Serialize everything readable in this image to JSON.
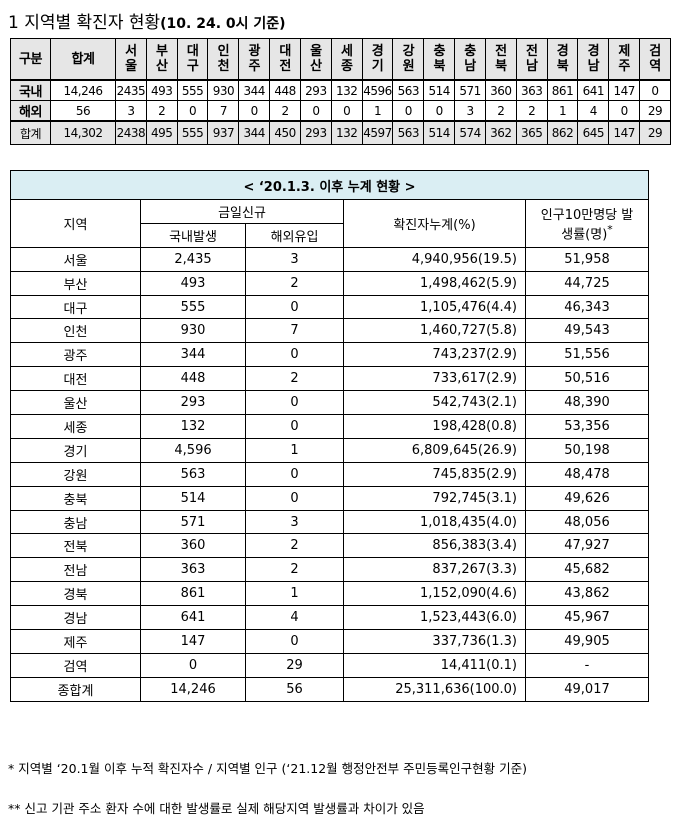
{
  "header": {
    "title": "1  지역별 확진자 현황",
    "date": "(10. 24. 0시 기준)"
  },
  "summary": {
    "columns": [
      "구분",
      "합계",
      "서울",
      "부산",
      "대구",
      "인천",
      "광주",
      "대전",
      "울산",
      "세종",
      "경기",
      "강원",
      "충북",
      "충남",
      "전북",
      "전남",
      "경북",
      "경남",
      "제주",
      "검역"
    ],
    "rows": [
      [
        "국내",
        "14,246",
        "2435",
        "493",
        "555",
        "930",
        "344",
        "448",
        "293",
        "132",
        "4596",
        "563",
        "514",
        "571",
        "360",
        "363",
        "861",
        "641",
        "147",
        "0"
      ],
      [
        "해외",
        "56",
        "3",
        "2",
        "0",
        "7",
        "0",
        "2",
        "0",
        "0",
        "1",
        "0",
        "0",
        "3",
        "2",
        "2",
        "1",
        "4",
        "0",
        "29"
      ],
      [
        "합계",
        "14,302",
        "2438",
        "495",
        "555",
        "937",
        "344",
        "450",
        "293",
        "132",
        "4597",
        "563",
        "514",
        "574",
        "362",
        "365",
        "862",
        "645",
        "147",
        "29"
      ]
    ]
  },
  "table": {
    "caption": "< ‘20.1.3. 이후 누계 현황 >",
    "header": {
      "region": "지역",
      "today": "금일신규",
      "domestic": "국내발생",
      "overseas": "해외유입",
      "cumulative": "확진자누계(%)",
      "rate": "인구10만명당 발생률(명)",
      "rate_mark": "*"
    },
    "rows": [
      [
        "서울",
        "2,435",
        "3",
        "4,940,956(19.5)",
        "51,958"
      ],
      [
        "부산",
        "493",
        "2",
        "1,498,462(5.9)",
        "44,725"
      ],
      [
        "대구",
        "555",
        "0",
        "1,105,476(4.4)",
        "46,343"
      ],
      [
        "인천",
        "930",
        "7",
        "1,460,727(5.8)",
        "49,543"
      ],
      [
        "광주",
        "344",
        "0",
        "743,237(2.9)",
        "51,556"
      ],
      [
        "대전",
        "448",
        "2",
        "733,617(2.9)",
        "50,516"
      ],
      [
        "울산",
        "293",
        "0",
        "542,743(2.1)",
        "48,390"
      ],
      [
        "세종",
        "132",
        "0",
        "198,428(0.8)",
        "53,356"
      ],
      [
        "경기",
        "4,596",
        "1",
        "6,809,645(26.9)",
        "50,198"
      ],
      [
        "강원",
        "563",
        "0",
        "745,835(2.9)",
        "48,478"
      ],
      [
        "충북",
        "514",
        "0",
        "792,745(3.1)",
        "49,626"
      ],
      [
        "충남",
        "571",
        "3",
        "1,018,435(4.0)",
        "48,056"
      ],
      [
        "전북",
        "360",
        "2",
        "856,383(3.4)",
        "47,927"
      ],
      [
        "전남",
        "363",
        "2",
        "837,267(3.3)",
        "45,682"
      ],
      [
        "경북",
        "861",
        "1",
        "1,152,090(4.6)",
        "43,862"
      ],
      [
        "경남",
        "641",
        "4",
        "1,523,443(6.0)",
        "45,967"
      ],
      [
        "제주",
        "147",
        "0",
        "337,736(1.3)",
        "49,905"
      ],
      [
        "검역",
        "0",
        "29",
        "14,411(0.1)",
        "-"
      ],
      [
        "종합계",
        "14,246",
        "56",
        "25,311,636(100.0)",
        "49,017"
      ]
    ]
  },
  "notes": [
    "* 지역별 ‘20.1월 이후 누적 확진자수 / 지역별 인구 (‘21.12월 행정안전부 주민등록인구현황 기준)",
    "** 신고 기관 주소 환자 수에 대한 발생률로 실제 해당지역 발생률과 차이가 있음"
  ]
}
